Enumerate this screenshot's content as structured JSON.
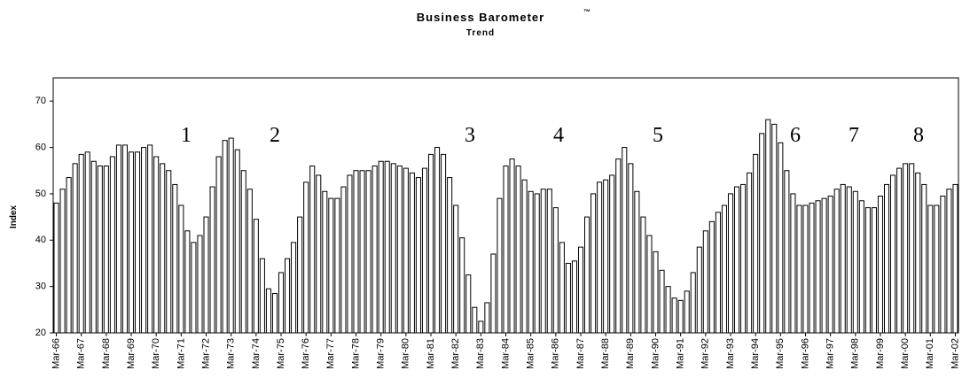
{
  "chart_data": {
    "type": "bar",
    "title": "Business Barometer",
    "title_mark": "™",
    "subtitle": "Trend",
    "y_label": "Index",
    "annotations": [
      "1",
      "2",
      "3",
      "4",
      "5",
      "6",
      "7",
      "8"
    ],
    "categories": [
      "Mar-66",
      null,
      null,
      null,
      "Mar-67",
      null,
      null,
      null,
      "Mar-68",
      null,
      null,
      null,
      "Mar-69",
      null,
      null,
      null,
      "Mar-70",
      null,
      null,
      null,
      "Mar-71",
      null,
      null,
      null,
      "Mar-72",
      null,
      null,
      null,
      "Mar-73",
      null,
      null,
      null,
      "Mar-74",
      null,
      null,
      null,
      "Mar-75",
      null,
      null,
      null,
      "Mar-76",
      null,
      null,
      null,
      "Mar-77",
      null,
      null,
      null,
      "Mar-78",
      null,
      null,
      null,
      "Mar-79",
      null,
      null,
      null,
      "Mar-80",
      null,
      null,
      null,
      "Mar-81",
      null,
      null,
      null,
      "Mar-82",
      null,
      null,
      null,
      "Mar-83",
      null,
      null,
      null,
      "Mar-84",
      null,
      null,
      null,
      "Mar-85",
      null,
      null,
      null,
      "Mar-86",
      null,
      null,
      null,
      "Mar-87",
      null,
      null,
      null,
      "Mar-88",
      null,
      null,
      null,
      "Mar-89",
      null,
      null,
      null,
      "Mar-90",
      null,
      null,
      null,
      "Mar-91",
      null,
      null,
      null,
      "Mar-92",
      null,
      null,
      null,
      "Mar-93",
      null,
      null,
      null,
      "Mar-94",
      null,
      null,
      null,
      "Mar-95",
      null,
      null,
      null,
      "Mar-96",
      null,
      null,
      null,
      "Mar-97",
      null,
      null,
      null,
      "Mar-98",
      null,
      null,
      null,
      "Mar-99",
      null,
      null,
      null,
      "Mar-00",
      null,
      null,
      null,
      "Mar-01",
      null,
      null,
      null,
      "Mar-02"
    ],
    "values": [
      48,
      51,
      53.5,
      56.5,
      58.5,
      59,
      57,
      56,
      56,
      58,
      60.5,
      60.5,
      59,
      59,
      60,
      60.5,
      58,
      56.5,
      55,
      52,
      47.5,
      42,
      39.5,
      41,
      45,
      51.5,
      58,
      61.5,
      62,
      59.5,
      55,
      51,
      44.5,
      36,
      29.5,
      28.5,
      33,
      36,
      39.5,
      45,
      52.5,
      56,
      54,
      50.5,
      49,
      49,
      51.5,
      54,
      55,
      55,
      55,
      56,
      57,
      57,
      56.5,
      56,
      55.5,
      54.5,
      53.5,
      55.5,
      58.5,
      60,
      58.5,
      53.5,
      47.5,
      40.5,
      32.5,
      25.5,
      22.5,
      26.5,
      37,
      49,
      56,
      57.5,
      56,
      53,
      50.5,
      50,
      51,
      51,
      47,
      39.5,
      35,
      35.5,
      38.5,
      45,
      50,
      52.5,
      53,
      54,
      57.5,
      60,
      56.5,
      50.5,
      45,
      41,
      37.5,
      33.5,
      30,
      27.5,
      27,
      29,
      33,
      38.5,
      42,
      44,
      46,
      47.5,
      50,
      51.5,
      52,
      54.5,
      58.5,
      63,
      66,
      65,
      61,
      55,
      50,
      47.5,
      47.5,
      48,
      48.5,
      49,
      49.5,
      51,
      52,
      51.5,
      50.5,
      48.5,
      47,
      47,
      49.5,
      52,
      54,
      55.5,
      56.5,
      56.5,
      54.5,
      52,
      47.5,
      47.5,
      49.5,
      51,
      52
    ],
    "color": "#ffffff",
    "edge_color": "#000000",
    "ylim": [
      20,
      75
    ],
    "yticks": [
      20,
      30,
      40,
      50,
      60,
      70
    ],
    "grid": false
  }
}
